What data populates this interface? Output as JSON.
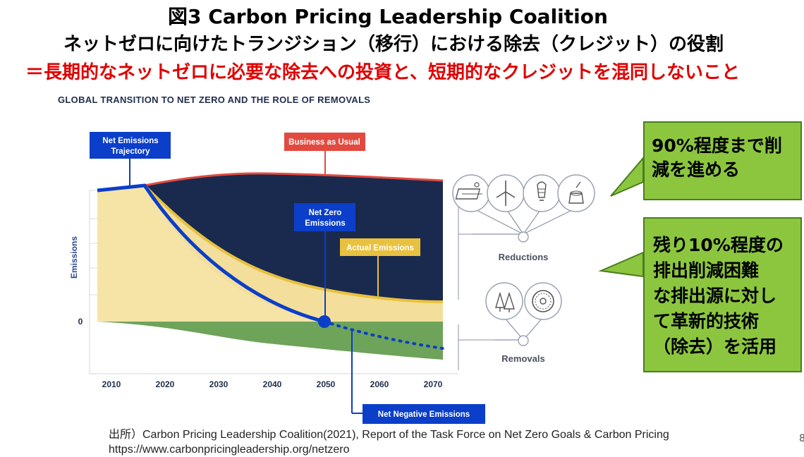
{
  "heading": {
    "line1": "図3 Carbon Pricing Leadership Coalition",
    "line2": "ネットゼロに向けたトランジション（移行）における除去（クレジット）の役割",
    "line3": "＝長期的なネットゼロに必要な除去への投資と、短期的なクレジットを混同しないこと"
  },
  "figure_title": "GLOBAL TRANSITION TO NET ZERO AND THE ROLE OF REMOVALS",
  "labels": {
    "net_emissions_trajectory_1": "Net Emissions",
    "net_emissions_trajectory_2": "Trajectory",
    "business_as_usual": "Business as Usual",
    "net_zero_emissions_1": "Net Zero",
    "net_zero_emissions_2": "Emissions",
    "actual_emissions": "Actual Emissions",
    "net_negative_emissions": "Net Negative Emissions",
    "reductions": "Reductions",
    "removals": "Removals",
    "y_axis": "Emissions",
    "zero": "0"
  },
  "x_ticks": [
    "2010",
    "2020",
    "2030",
    "2040",
    "2050",
    "2060",
    "2070"
  ],
  "callouts": {
    "reductions_note": "90%程度まで削減を進める",
    "removals_note": "残り10%程度の排出削減困難な排出源に対して革新的技術（除去）を活用",
    "reductions_lines": [
      "90%程度まで削",
      "減を進める"
    ],
    "removals_lines": [
      "残り10%程度の",
      "排出削減困難",
      "な排出源に対し",
      "て革新的技術",
      "（除去）を活用"
    ]
  },
  "icons": {
    "reductions": [
      "solar-panel-icon",
      "wind-turbine-icon",
      "light-bulb-icon",
      "tree-stump-icon"
    ],
    "removals": [
      "forest-icon",
      "turbine-fan-icon"
    ]
  },
  "source": {
    "line1": "出所）Carbon Pricing Leadership Coalition(2021), Report of the Task Force on Net Zero Goals & Carbon Pricing",
    "line2": "https://www.carbonpricingleadership.org/netzero"
  },
  "page_number": "8",
  "colors": {
    "navy": "#1a2a4e",
    "cream": "#f5e4a6",
    "yellow": "#e8c13e",
    "green": "#6ea35a",
    "blue": "#0b3ec9",
    "red": "#e34a3f",
    "callout_green": "#8cc63f"
  }
}
